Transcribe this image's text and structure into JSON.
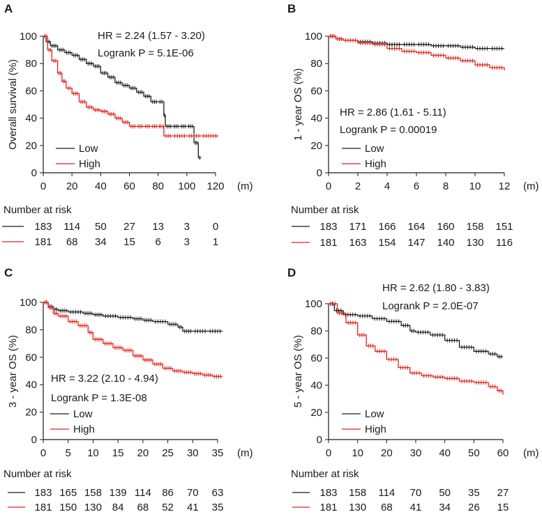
{
  "colors": {
    "low": "#1a1a1a",
    "high": "#e0201b"
  },
  "chart_data": [
    {
      "panel": "A",
      "type": "line",
      "title": "",
      "xlabel": "",
      "ylabel": "Overall survival (%)",
      "xunit": "(m)",
      "xlim": [
        0,
        120
      ],
      "ylim": [
        0,
        100
      ],
      "xticks": [
        0,
        20,
        40,
        60,
        80,
        100,
        120
      ],
      "yticks": [
        0,
        20,
        40,
        60,
        80,
        100
      ],
      "stat_hr": "HR = 2.24 (1.57 - 3.20)",
      "stat_p": "Logrank P = 5.1E-06",
      "legend": [
        "Low",
        "High"
      ],
      "risk_title": "Number at risk",
      "series": [
        {
          "name": "Low",
          "color": "#1a1a1a",
          "x": [
            0,
            2,
            5,
            10,
            15,
            20,
            25,
            30,
            35,
            40,
            45,
            50,
            55,
            60,
            65,
            70,
            75,
            80,
            84,
            85,
            90,
            95,
            100,
            105,
            108,
            110
          ],
          "y": [
            100,
            96,
            93,
            90,
            88,
            86,
            83,
            80,
            78,
            73,
            70,
            66,
            64,
            62,
            59,
            56,
            52,
            52,
            42,
            34,
            34,
            34,
            34,
            22,
            11,
            11
          ],
          "risk": [
            "183",
            "114",
            "50",
            "27",
            "13",
            "3",
            "0"
          ]
        },
        {
          "name": "High",
          "color": "#e0201b",
          "x": [
            0,
            3,
            6,
            10,
            13,
            16,
            20,
            25,
            30,
            35,
            40,
            45,
            50,
            55,
            60,
            65,
            70,
            75,
            80,
            83,
            84,
            90,
            100,
            110,
            122
          ],
          "y": [
            100,
            90,
            82,
            73,
            67,
            62,
            58,
            52,
            48,
            46,
            45,
            43,
            40,
            37,
            34,
            34,
            34,
            34,
            34,
            34,
            27,
            27,
            27,
            27,
            27
          ],
          "risk": [
            "181",
            "68",
            "34",
            "15",
            "6",
            "3",
            "1"
          ]
        }
      ]
    },
    {
      "panel": "B",
      "type": "line",
      "title": "",
      "xlabel": "",
      "ylabel": "1 - year OS (%)",
      "xunit": "(m)",
      "xlim": [
        0,
        12
      ],
      "ylim": [
        0,
        100
      ],
      "xticks": [
        0,
        2,
        4,
        6,
        8,
        10,
        12
      ],
      "yticks": [
        0,
        20,
        40,
        60,
        80,
        100
      ],
      "stat_hr": "HR = 2.86 (1.61 - 5.11)",
      "stat_p": "Logrank P = 0.00019",
      "legend": [
        "Low",
        "High"
      ],
      "risk_title": "Number at risk",
      "series": [
        {
          "name": "Low",
          "color": "#1a1a1a",
          "x": [
            0,
            0.5,
            1,
            2,
            3,
            4,
            5,
            6,
            7,
            8,
            9,
            10,
            11,
            12
          ],
          "y": [
            100,
            98,
            97,
            96,
            95,
            94,
            94,
            94,
            93,
            93,
            92,
            91,
            91,
            91
          ],
          "risk": [
            "183",
            "171",
            "166",
            "164",
            "160",
            "158",
            "151"
          ]
        },
        {
          "name": "High",
          "color": "#e0201b",
          "x": [
            0,
            0.5,
            1,
            2,
            3,
            4,
            5,
            6,
            7,
            8,
            9,
            10,
            11,
            12
          ],
          "y": [
            100,
            98,
            97,
            95,
            94,
            91,
            89,
            88,
            86,
            84,
            82,
            79,
            77,
            75
          ],
          "risk": [
            "181",
            "163",
            "154",
            "147",
            "140",
            "130",
            "116"
          ]
        }
      ]
    },
    {
      "panel": "C",
      "type": "line",
      "title": "",
      "xlabel": "",
      "ylabel": "3 - year OS (%)",
      "xunit": "(m)",
      "xlim": [
        0,
        35
      ],
      "ylim": [
        0,
        100
      ],
      "xticks": [
        0,
        5,
        10,
        15,
        20,
        25,
        30,
        35
      ],
      "yticks": [
        0,
        20,
        40,
        60,
        80,
        100
      ],
      "stat_hr": "HR = 3.22 (2.10 - 4.94)",
      "stat_p": "Logrank P = 1.3E-08",
      "legend": [
        "Low",
        "High"
      ],
      "risk_title": "Number at risk",
      "series": [
        {
          "name": "Low",
          "color": "#1a1a1a",
          "x": [
            0,
            1,
            2,
            3,
            5,
            8,
            10,
            12,
            15,
            18,
            20,
            22,
            25,
            27,
            28,
            30,
            33,
            36
          ],
          "y": [
            100,
            97,
            95,
            94,
            93,
            92,
            91,
            90,
            89,
            88,
            87,
            86,
            84,
            82,
            79,
            79,
            79,
            79
          ],
          "risk": [
            "183",
            "165",
            "158",
            "139",
            "114",
            "86",
            "70",
            "63"
          ]
        },
        {
          "name": "High",
          "color": "#e0201b",
          "x": [
            0,
            1,
            2,
            3,
            5,
            7,
            9,
            10,
            12,
            14,
            16,
            18,
            20,
            22,
            24,
            26,
            28,
            30,
            32,
            34,
            36
          ],
          "y": [
            100,
            96,
            92,
            90,
            86,
            83,
            78,
            73,
            70,
            67,
            65,
            61,
            58,
            55,
            52,
            50,
            49,
            48,
            47,
            46,
            46
          ],
          "risk": [
            "181",
            "150",
            "130",
            "84",
            "68",
            "52",
            "41",
            "35"
          ]
        }
      ]
    },
    {
      "panel": "D",
      "type": "line",
      "title": "",
      "xlabel": "",
      "ylabel": "5 - year OS (%)",
      "xunit": "(m)",
      "xlim": [
        0,
        60
      ],
      "ylim": [
        0,
        100
      ],
      "xticks": [
        0,
        10,
        20,
        30,
        40,
        50,
        60
      ],
      "yticks": [
        0,
        20,
        40,
        60,
        80,
        100
      ],
      "stat_hr": "HR = 2.62 (1.80 - 3.83)",
      "stat_p": "Logrank P = 2.0E-07",
      "legend": [
        "Low",
        "High"
      ],
      "risk_title": "Number at risk",
      "series": [
        {
          "name": "Low",
          "color": "#1a1a1a",
          "x": [
            0,
            2,
            5,
            10,
            15,
            20,
            25,
            28,
            30,
            35,
            40,
            45,
            50,
            55,
            58,
            60
          ],
          "y": [
            100,
            95,
            92,
            91,
            89,
            87,
            84,
            80,
            79,
            77,
            73,
            68,
            65,
            63,
            61,
            61
          ],
          "risk": [
            "183",
            "158",
            "114",
            "70",
            "50",
            "35",
            "27"
          ]
        },
        {
          "name": "High",
          "color": "#e0201b",
          "x": [
            0,
            3,
            6,
            10,
            13,
            16,
            20,
            24,
            28,
            32,
            36,
            40,
            45,
            50,
            55,
            58,
            60
          ],
          "y": [
            100,
            93,
            86,
            77,
            69,
            65,
            59,
            53,
            49,
            47,
            46,
            45,
            43,
            42,
            39,
            36,
            33
          ],
          "risk": [
            "181",
            "130",
            "68",
            "41",
            "34",
            "26",
            "15"
          ]
        }
      ]
    }
  ]
}
